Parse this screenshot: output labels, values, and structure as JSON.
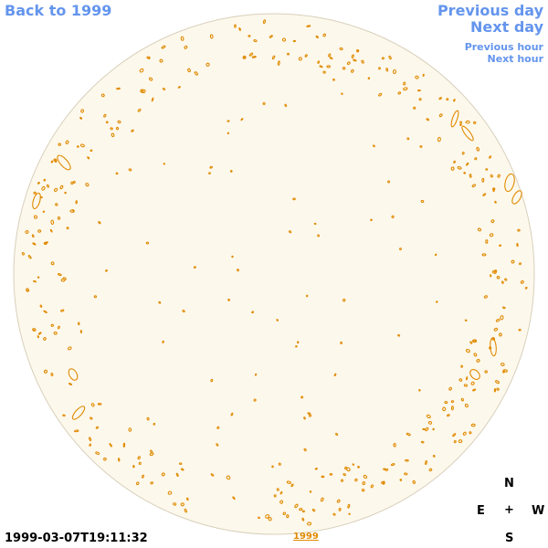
{
  "nav": {
    "back_label": "Back to 1999",
    "prev_day_label": "Previous day",
    "next_day_label": "Next day",
    "prev_hour_label": "Previous hour",
    "next_hour_label": "Next hour"
  },
  "footer": {
    "timestamp": "1999-03-07T19:11:32",
    "year_link": "1999"
  },
  "compass": {
    "n": "N",
    "e": "E",
    "center": "+",
    "w": "W",
    "s": "S"
  },
  "colors": {
    "link": "#6495ed",
    "disk_fill": "#fdf8ec",
    "disk_edge": "#d8d0bc",
    "contour": "#e08a00"
  },
  "icons": {
    "compass_center": "crosshair-plus"
  }
}
